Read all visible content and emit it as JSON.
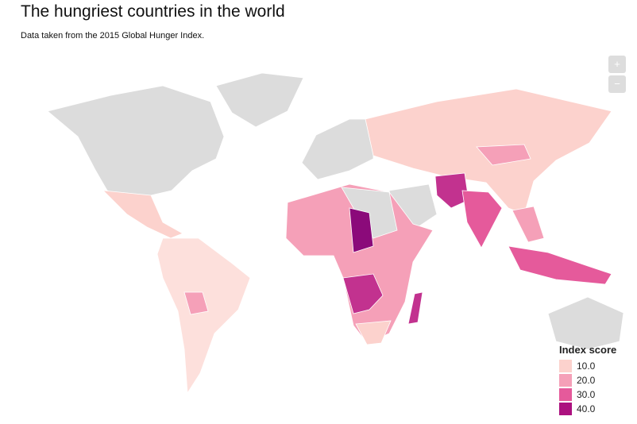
{
  "header": {
    "title": "The hungriest countries in the world",
    "subtitle": "Data taken from the 2015 Global Hunger Index."
  },
  "zoom": {
    "in": "+",
    "out": "−"
  },
  "legend": {
    "title": "Index score",
    "items": [
      {
        "label": "10.0",
        "color": "#fcd2cd"
      },
      {
        "label": "20.0",
        "color": "#f5a0b8"
      },
      {
        "label": "30.0",
        "color": "#e55a9b"
      },
      {
        "label": "40.0",
        "color": "#ac117f"
      }
    ]
  }
}
